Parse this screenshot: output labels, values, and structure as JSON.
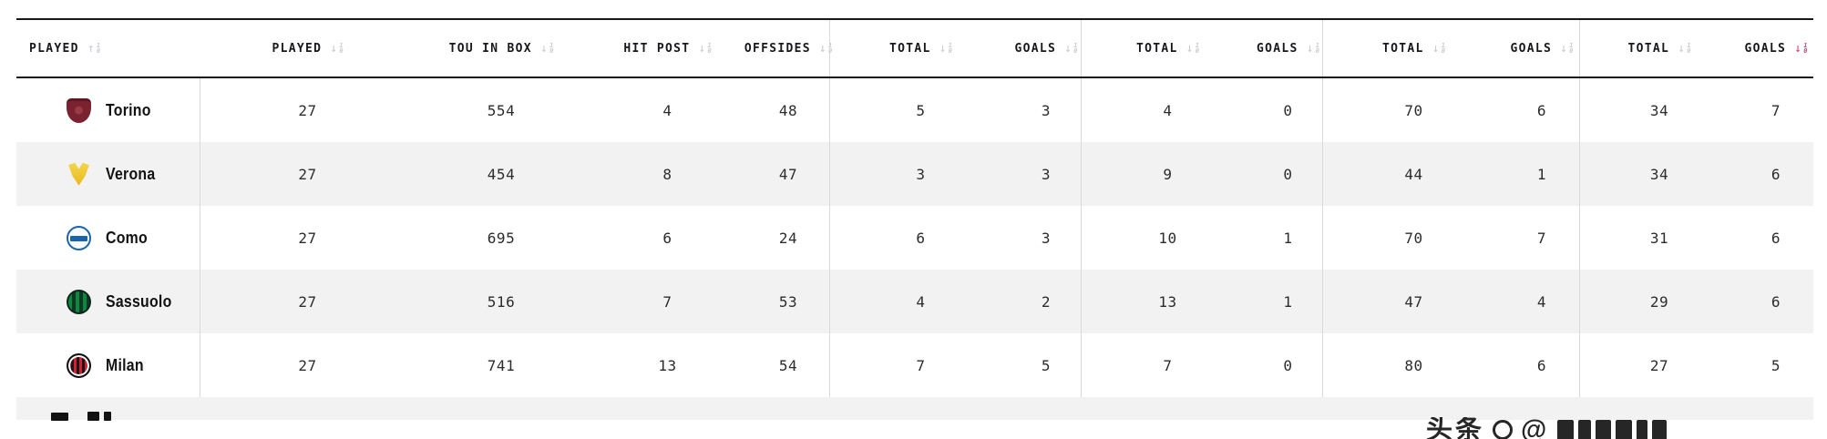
{
  "colors": {
    "stripe": "#f2f2f2",
    "divider": "#d9d9d9",
    "header_line": "#17181c",
    "sort_active": "#c6456f",
    "sort_inactive": "#c7cad0",
    "header_text": "#17181b",
    "number_text": "#2c2c2e",
    "team_text": "#121212"
  },
  "header": {
    "sort_icon_digits": [
      "1",
      "0"
    ],
    "columns": [
      {
        "label": "PLAYED",
        "dir": "up",
        "active": false
      },
      {
        "label": "PLAYED",
        "dir": "down",
        "active": false
      },
      {
        "label": "TOU IN BOX",
        "dir": "down",
        "active": false
      },
      {
        "label": "HIT POST",
        "dir": "down",
        "active": false
      },
      {
        "label": "OFFSIDES",
        "dir": "down",
        "active": false
      },
      {
        "label": "TOTAL",
        "dir": "down",
        "active": false
      },
      {
        "label": "GOALS",
        "dir": "down",
        "active": false
      },
      {
        "label": "TOTAL",
        "dir": "down",
        "active": false
      },
      {
        "label": "GOALS",
        "dir": "down",
        "active": false
      },
      {
        "label": "TOTAL",
        "dir": "down",
        "active": false
      },
      {
        "label": "GOALS",
        "dir": "down",
        "active": false
      },
      {
        "label": "TOTAL",
        "dir": "down",
        "active": false
      },
      {
        "label": "GOALS",
        "dir": "down",
        "active": true
      }
    ]
  },
  "rows": [
    {
      "team": "Torino",
      "logo": "torino",
      "values": [
        27,
        554,
        4,
        48,
        5,
        3,
        4,
        0,
        70,
        6,
        34,
        7
      ]
    },
    {
      "team": "Verona",
      "logo": "verona",
      "values": [
        27,
        454,
        8,
        47,
        3,
        3,
        9,
        0,
        44,
        1,
        34,
        6
      ]
    },
    {
      "team": "Como",
      "logo": "como",
      "values": [
        27,
        695,
        6,
        24,
        6,
        3,
        10,
        1,
        70,
        7,
        31,
        6
      ]
    },
    {
      "team": "Sassuolo",
      "logo": "sassuolo",
      "values": [
        27,
        516,
        7,
        53,
        4,
        2,
        13,
        1,
        47,
        4,
        29,
        6
      ]
    },
    {
      "team": "Milan",
      "logo": "milan",
      "values": [
        27,
        741,
        13,
        54,
        7,
        5,
        7,
        0,
        80,
        6,
        27,
        5
      ]
    }
  ],
  "watermark": {
    "brand": "头条",
    "handle_prefix": "@"
  }
}
